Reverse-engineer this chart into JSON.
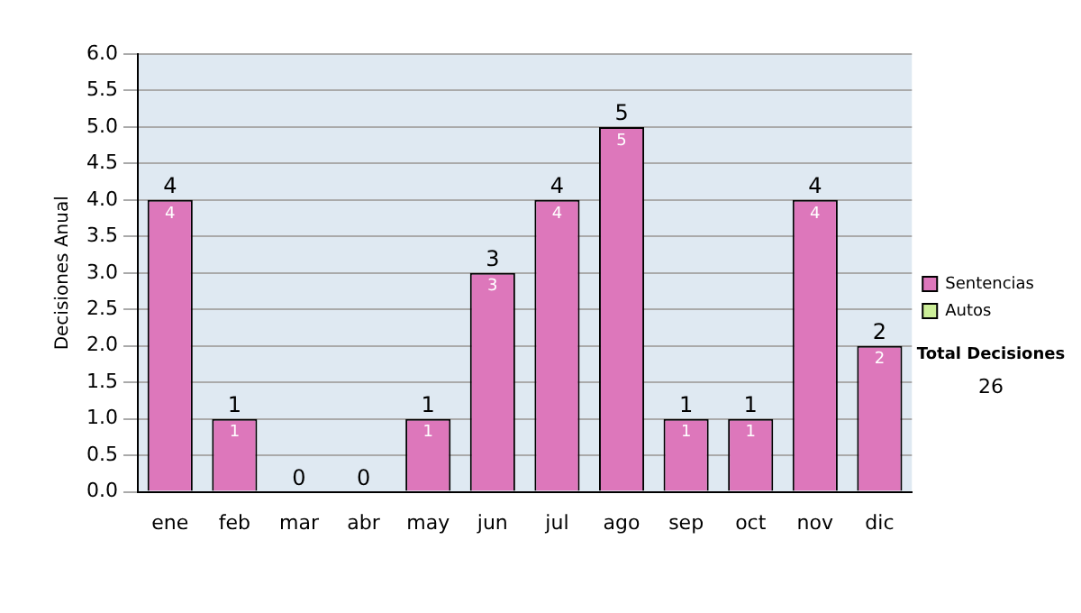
{
  "chart_data": {
    "type": "bar",
    "ylabel": "Decisiones Anual",
    "categories": [
      "ene",
      "feb",
      "mar",
      "abr",
      "may",
      "jun",
      "jul",
      "ago",
      "sep",
      "oct",
      "nov",
      "dic"
    ],
    "series": [
      {
        "name": "Sentencias",
        "color": "#dd77bb",
        "values": [
          4,
          1,
          0,
          0,
          1,
          3,
          4,
          5,
          1,
          1,
          4,
          2
        ],
        "value_labels": [
          "4",
          "1",
          null,
          null,
          "1",
          "3",
          "4",
          "5",
          "1",
          "1",
          "4",
          "2"
        ]
      },
      {
        "name": "Autos",
        "color": "#ccee99",
        "values": [
          0,
          0,
          0,
          0,
          0,
          0,
          0,
          0,
          0,
          0,
          0,
          0
        ]
      }
    ],
    "stacked": true,
    "totals": [
      "4",
      "1",
      "0",
      "0",
      "1",
      "3",
      "4",
      "5",
      "1",
      "1",
      "4",
      "2"
    ],
    "ylim": [
      0,
      6
    ],
    "yticks": [
      {
        "value": 0,
        "label": "0.0"
      },
      {
        "value": 0.5,
        "label": "0.5"
      },
      {
        "value": 1,
        "label": "1.0"
      },
      {
        "value": 1.5,
        "label": "1.5"
      },
      {
        "value": 2,
        "label": "2.0"
      },
      {
        "value": 2.5,
        "label": "2.5"
      },
      {
        "value": 3,
        "label": "3.0"
      },
      {
        "value": 3.5,
        "label": "3.5"
      },
      {
        "value": 4,
        "label": "4.0"
      },
      {
        "value": 4.5,
        "label": "4.5"
      },
      {
        "value": 5,
        "label": "5.0"
      },
      {
        "value": 5.5,
        "label": "5.5"
      },
      {
        "value": 6,
        "label": "6.0"
      }
    ],
    "grid": "y",
    "legend": "right",
    "annotations": [
      "Total Decisiones",
      "26"
    ]
  }
}
